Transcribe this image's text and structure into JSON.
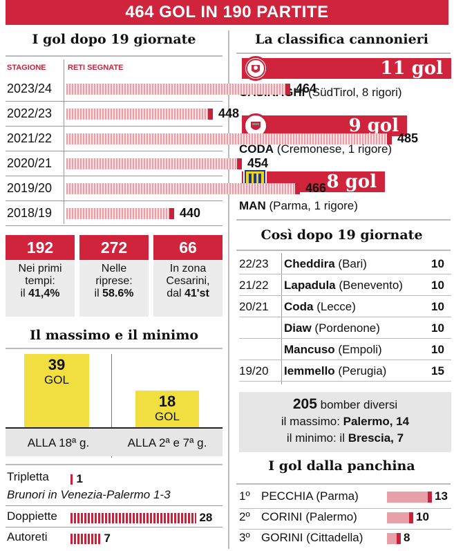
{
  "header": {
    "title": "464 GOL IN 190 PARTITE"
  },
  "left": {
    "goals_title": "I gol dopo 19 giornate",
    "col_season": "STAGIONE",
    "col_goals": "RETI SEGNATE",
    "seasons": [
      {
        "season": "2023/24",
        "goals": "464"
      },
      {
        "season": "2022/23",
        "goals": "448"
      },
      {
        "season": "2021/22",
        "goals": "485"
      },
      {
        "season": "2020/21",
        "goals": "454"
      },
      {
        "season": "2019/20",
        "goals": "466"
      },
      {
        "season": "2018/19",
        "goals": "440"
      }
    ],
    "stats": [
      {
        "num": "192",
        "line1": "Nei primi",
        "line2": "tempi:",
        "line3": "il ",
        "bold": "41,4%"
      },
      {
        "num": "272",
        "line1": "Nelle",
        "line2": "riprese:",
        "line3": "il ",
        "bold": "58.6%"
      },
      {
        "num": "66",
        "line1": "In zona",
        "line2": "Cesarini,",
        "line3": "dal ",
        "bold": "41'st"
      }
    ],
    "maxmin_title": "Il massimo e il minimo",
    "max": {
      "num": "39",
      "unit": "GOL",
      "label": "ALLA 18ª g."
    },
    "min": {
      "num": "18",
      "unit": "GOL",
      "label": "ALLA 2ª e 7ª g."
    },
    "tripletta_label": "Tripletta",
    "tripletta_value": "1",
    "tripletta_note": "Brunori in Venezia-Palermo 1-3",
    "doppiette_label": "Doppiette",
    "doppiette_value": "28",
    "autoreti_label": "Autoreti",
    "autoreti_value": "7"
  },
  "right": {
    "scorers_title": "La classifica cannonieri",
    "scorers": [
      {
        "goals": "11 gol",
        "name": "CASIRAGHI",
        "detail": " (SüdTirol, 8 rigori)",
        "team_color": "#d0243d"
      },
      {
        "goals": "9 gol",
        "name": "CODA",
        "detail": " (Cremonese, 1 rigore)",
        "team_color": "#c8213a"
      },
      {
        "goals": "8 gol",
        "name": "MAN",
        "detail": " (Parma, 1 rigore)",
        "team_color": "#f4d21c"
      }
    ],
    "history_title": "Così dopo 19 giornate",
    "history": [
      {
        "season": "22/23",
        "name": "Cheddira",
        "team": " (Bari)",
        "goals": "10"
      },
      {
        "season": "21/22",
        "name": "Lapadula",
        "team": " (Benevento)",
        "goals": "10"
      },
      {
        "season": "20/21",
        "name": "Coda",
        "team": " (Lecce)",
        "goals": "10"
      },
      {
        "season": "",
        "name": "Diaw",
        "team": " (Pordenone)",
        "goals": "10"
      },
      {
        "season": "",
        "name": "Mancuso",
        "team": " (Empoli)",
        "goals": "10"
      },
      {
        "season": "19/20",
        "name": "Iemmello",
        "team": " (Perugia)",
        "goals": "15"
      }
    ],
    "summary": {
      "count": "205",
      "count_text": " bomber diversi",
      "max_text": "il massimo: ",
      "max_team": "Palermo, 14",
      "min_text": "il minimo: il ",
      "min_team": "Brescia, 7"
    },
    "bench_title": "I gol dalla panchina",
    "bench": [
      {
        "rank": "1º",
        "name": "PECCHIA (Parma)",
        "goals": "13"
      },
      {
        "rank": "2º",
        "name": "CORINI (Palermo)",
        "goals": "10"
      },
      {
        "rank": "3º",
        "name": "GORINI (Cittadella)",
        "goals": "8"
      }
    ]
  }
}
